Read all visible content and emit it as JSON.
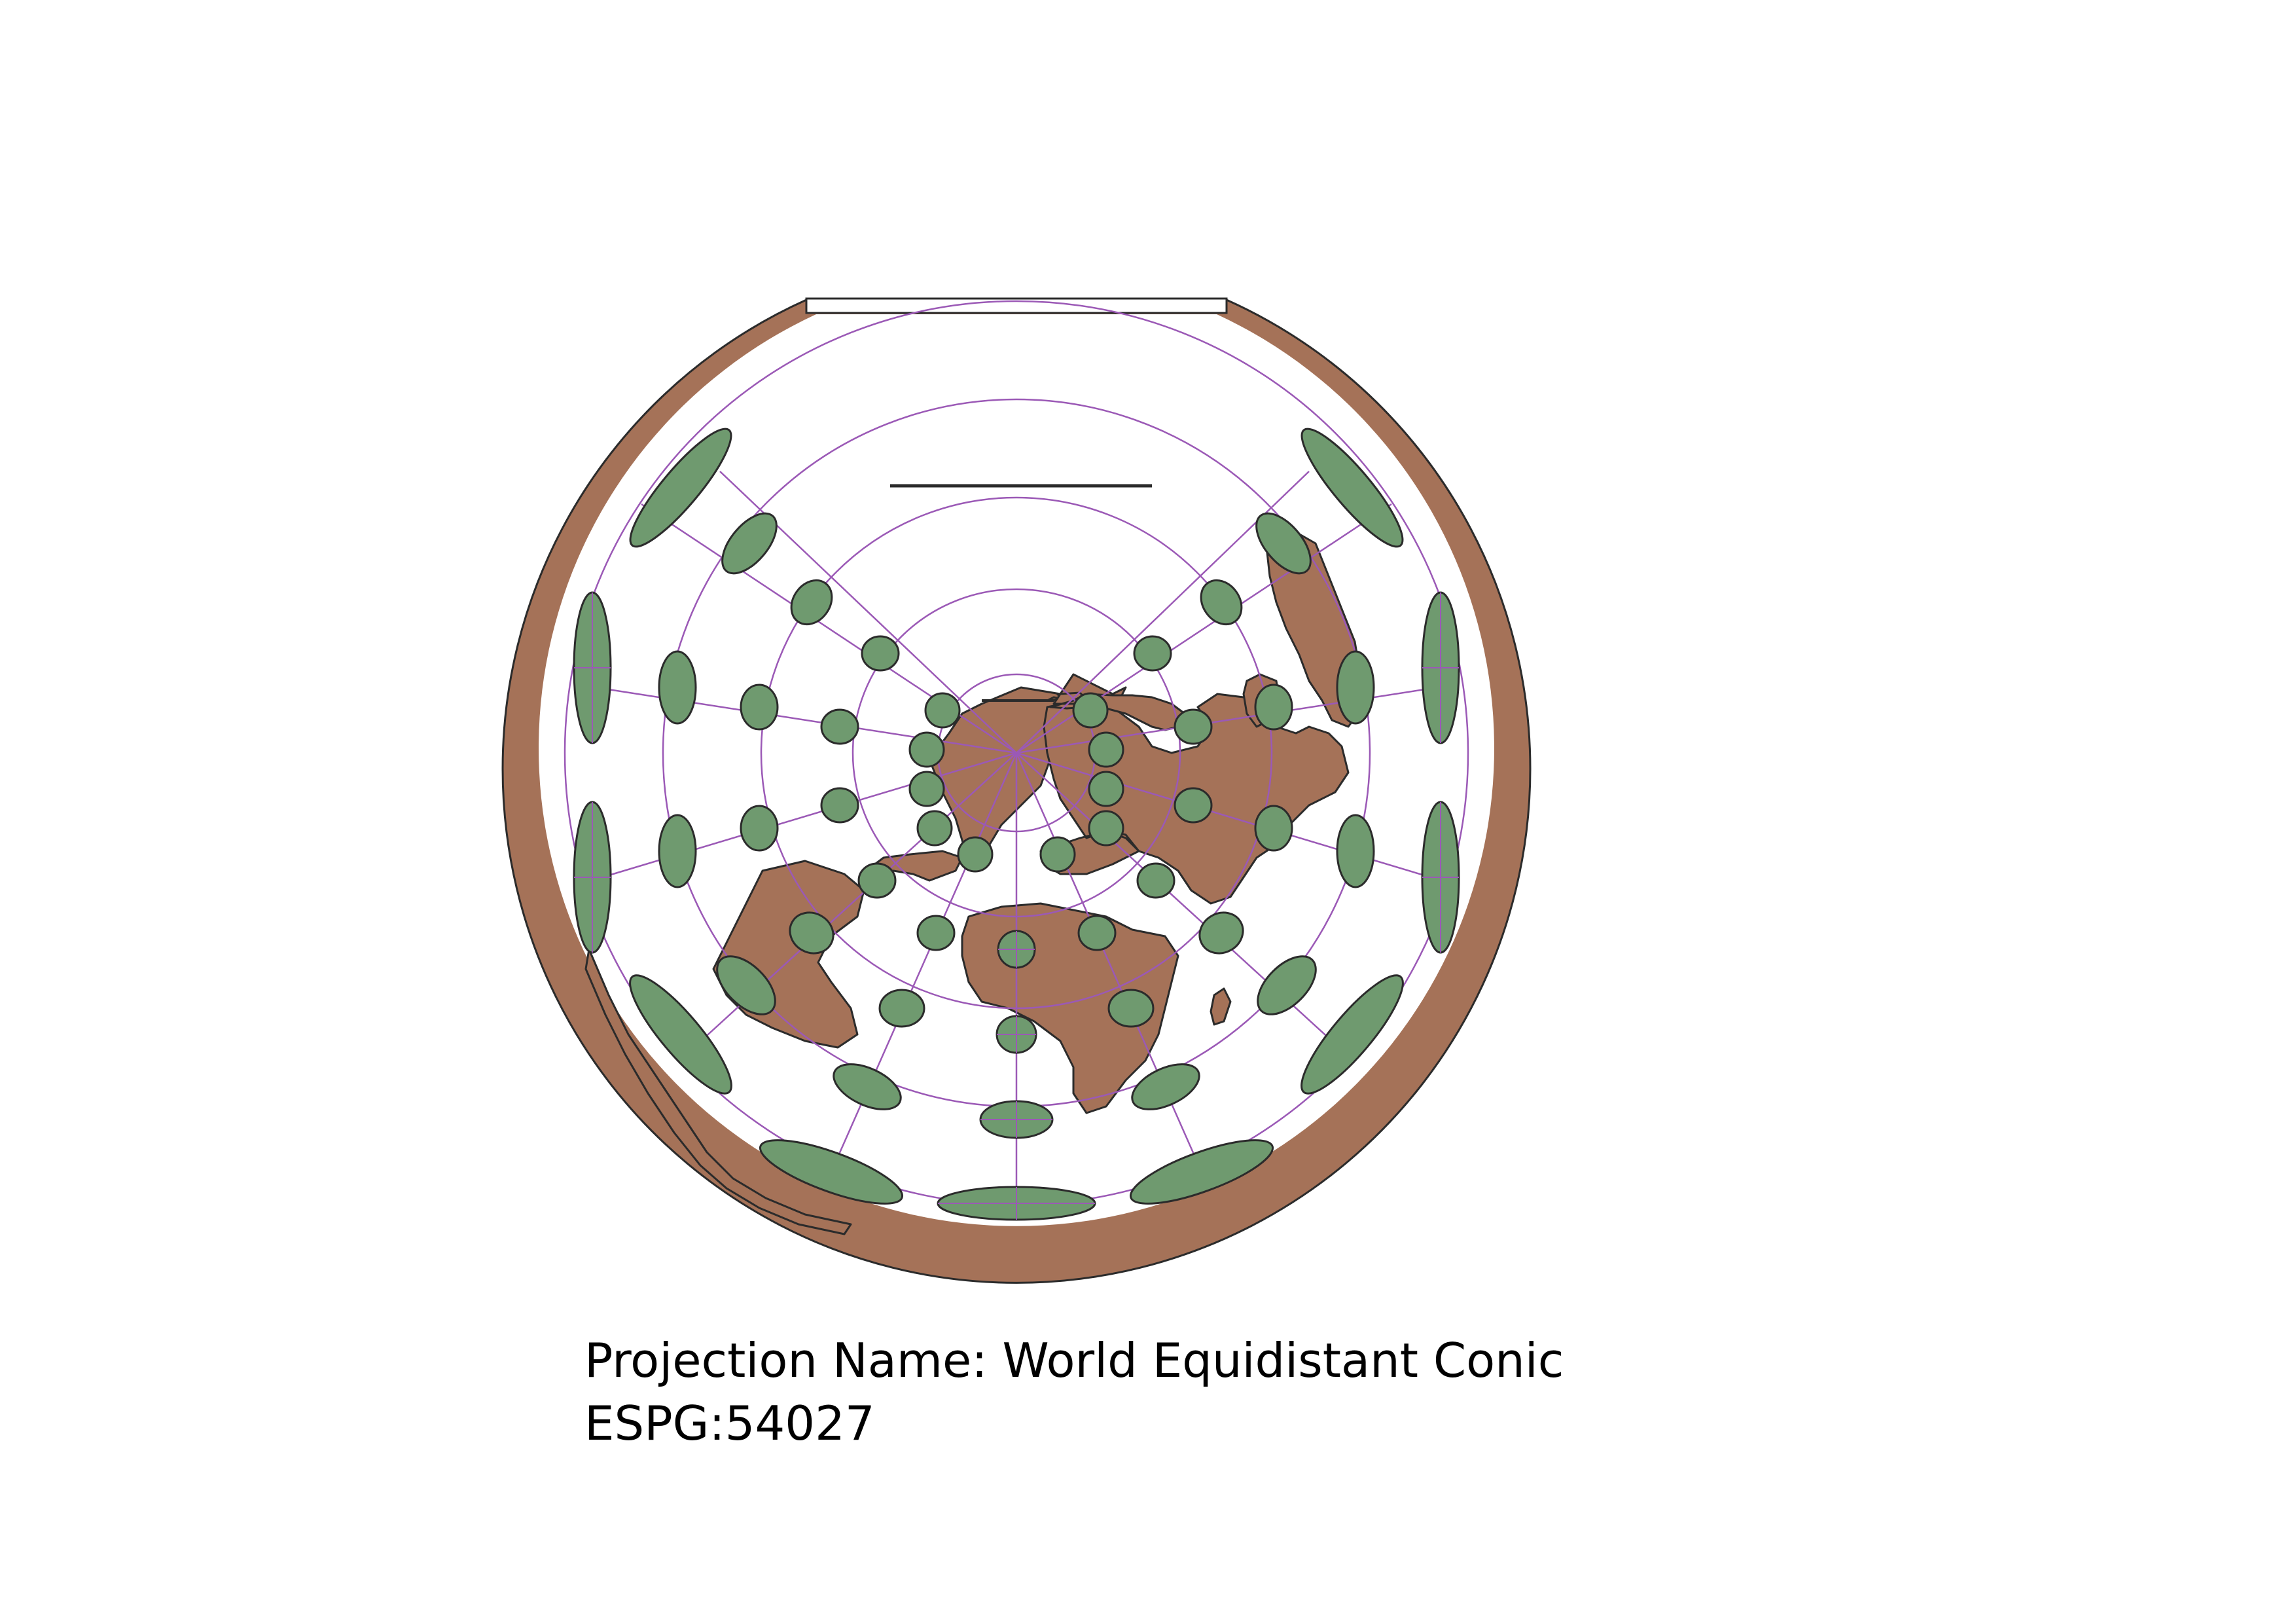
{
  "caption": {
    "projection_line": "Projection Name: World Equidistant Conic",
    "code_line": "ESPG:54027"
  },
  "colors": {
    "land": "#a57258",
    "ellipse_fill": "#6f9a6f",
    "graticule": "#9b59b6",
    "outline": "#2b2b2b",
    "background": "#ffffff"
  }
}
